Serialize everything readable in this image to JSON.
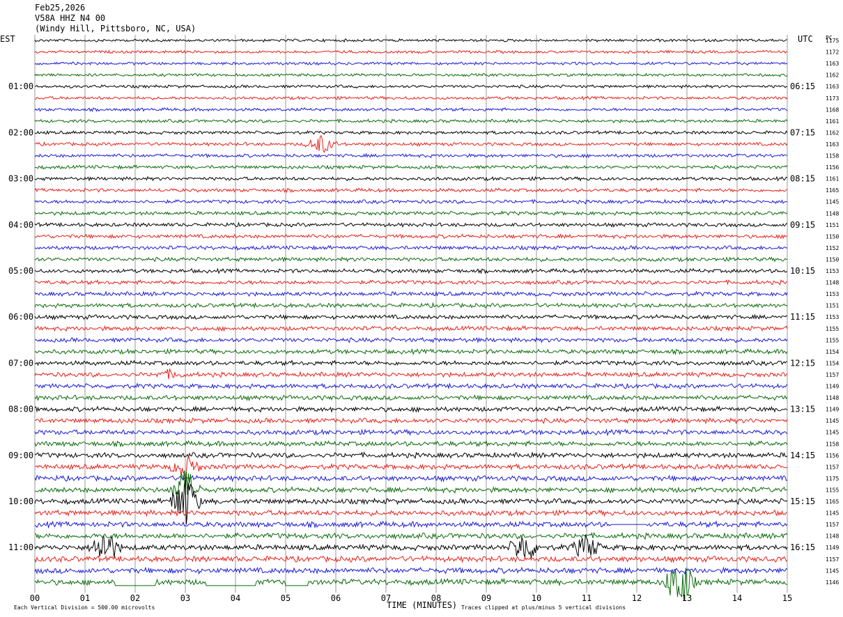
{
  "header": {
    "date": "Feb25,2026",
    "station": "V58A HHZ N4 00",
    "location": "(Windy Hill, Pittsboro, NC, USA)"
  },
  "left_timezone": "EST",
  "right_timezone": "UTC",
  "right_column_label": "PC",
  "footer": {
    "division_note": "Each Vertical Division =  500.00 microvolts",
    "xlabel": "TIME (MINUTES)",
    "clip_note": "Traces clipped at plus/minus 5 vertical divisions"
  },
  "colors": {
    "trace_cycle": [
      "#000000",
      "#e8201a",
      "#1a1ad8",
      "#0a6a0a"
    ],
    "grid": "#9a9a9a",
    "text": "#000000"
  },
  "chart_data": {
    "type": "line",
    "title": "V58A HHZ N4 00",
    "xlabel": "TIME (MINUTES)",
    "xlim": [
      0,
      15
    ],
    "x_ticks": [
      "00",
      "01",
      "02",
      "03",
      "04",
      "05",
      "06",
      "07",
      "08",
      "09",
      "10",
      "11",
      "12",
      "13",
      "14",
      "15"
    ],
    "rows": 48,
    "row_minutes": 15,
    "left_hour_labels": [
      "01:00",
      "02:00",
      "03:00",
      "04:00",
      "05:00",
      "06:00",
      "07:00",
      "08:00",
      "09:00",
      "10:00",
      "11:00"
    ],
    "right_hour_labels": [
      "06:15",
      "07:15",
      "08:15",
      "09:15",
      "10:15",
      "11:15",
      "12:15",
      "13:15",
      "14:15",
      "15:15",
      "16:15"
    ],
    "row_values": [
      1175,
      1172,
      1163,
      1162,
      1163,
      1173,
      1168,
      1161,
      1162,
      1163,
      1158,
      1156,
      1161,
      1165,
      1145,
      1148,
      1151,
      1150,
      1152,
      1150,
      1153,
      1148,
      1153,
      1151,
      1153,
      1155,
      1155,
      1154,
      1154,
      1157,
      1149,
      1148,
      1149,
      1145,
      1145,
      1158,
      1156,
      1157,
      1175,
      1155,
      1165,
      1145,
      1157,
      1148,
      1149,
      1157,
      1145,
      1146
    ],
    "events": [
      {
        "row": 9,
        "minute": 5.7,
        "amplitude": 1.6
      },
      {
        "row": 29,
        "minute": 2.7,
        "amplitude": 0.6
      },
      {
        "row": 37,
        "minute": 3.0,
        "amplitude": 2.0
      },
      {
        "row": 39,
        "minute": 3.0,
        "amplitude": 3.5
      },
      {
        "row": 40,
        "minute": 3.0,
        "amplitude": 4.5
      },
      {
        "row": 44,
        "minute": 1.4,
        "amplitude": 3.0
      },
      {
        "row": 44,
        "minute": 9.75,
        "amplitude": 2.6
      },
      {
        "row": 44,
        "minute": 11.0,
        "amplitude": 2.0
      },
      {
        "row": 47,
        "minute": 12.85,
        "amplitude": 4.5
      }
    ],
    "gaps": [
      {
        "row": 42,
        "start": 11.5,
        "end": 12.2
      },
      {
        "row": 47,
        "start": 1.6,
        "end": 2.4
      },
      {
        "row": 47,
        "start": 3.4,
        "end": 4.4
      },
      {
        "row": 47,
        "start": 5.0,
        "end": 5.45
      }
    ]
  }
}
